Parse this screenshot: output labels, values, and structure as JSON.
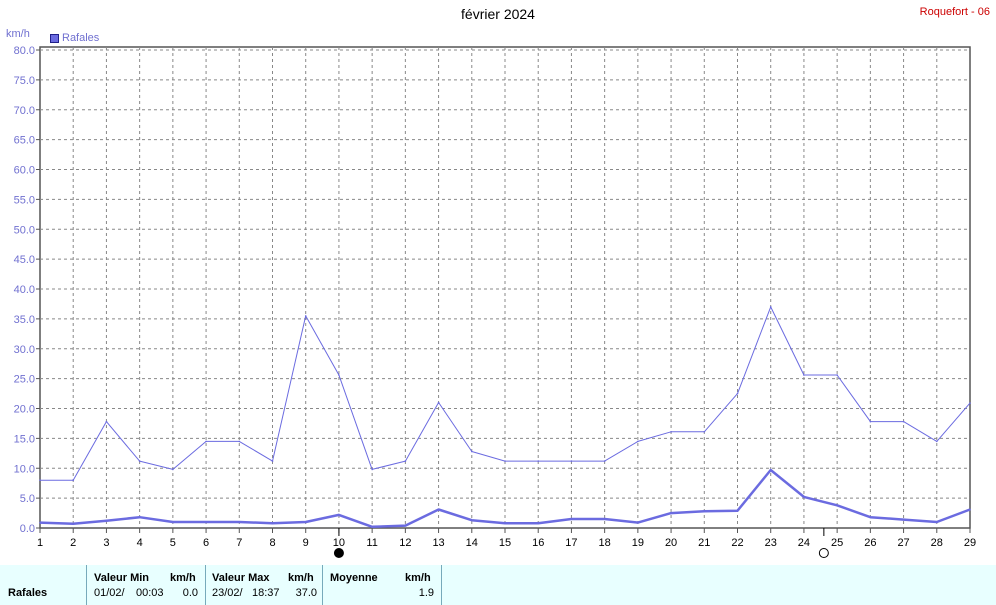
{
  "header": {
    "title": "février 2024",
    "station": "Roquefort - 06",
    "unit": "km/h",
    "legend_label": "Rafales"
  },
  "colors": {
    "series": "#6b6be0",
    "grid": "#888888",
    "axis_text": "#7070d0",
    "station": "#cc0000",
    "stats_bg": "#e8ffff"
  },
  "chart_data": {
    "type": "line",
    "title": "février 2024",
    "ylabel": "km/h",
    "ylim": [
      0,
      80
    ],
    "y_ticks": [
      "0.0",
      "5.0",
      "10.0",
      "15.0",
      "20.0",
      "25.0",
      "30.0",
      "35.0",
      "40.0",
      "45.0",
      "50.0",
      "55.0",
      "60.0",
      "65.0",
      "70.0",
      "75.0",
      "80.0"
    ],
    "x": [
      "1",
      "2",
      "3",
      "4",
      "5",
      "6",
      "7",
      "8",
      "9",
      "10",
      "11",
      "12",
      "13",
      "14",
      "15",
      "16",
      "17",
      "18",
      "19",
      "20",
      "21",
      "22",
      "23",
      "24",
      "25",
      "26",
      "27",
      "28",
      "29"
    ],
    "grid": true,
    "legend_position": "top-left",
    "series": [
      {
        "name": "Rafales",
        "style": "thin",
        "values": [
          8,
          8,
          17.8,
          11.2,
          9.8,
          14.5,
          14.5,
          11.2,
          35.5,
          25.6,
          9.8,
          11.2,
          21,
          12.8,
          11.2,
          11.2,
          11.2,
          11.2,
          14.5,
          16.1,
          16.1,
          22.5,
          37,
          25.6,
          25.6,
          17.8,
          17.8,
          14.5,
          20.9
        ]
      },
      {
        "name": "Rafales",
        "style": "thick",
        "values": [
          0.9,
          0.7,
          1.2,
          1.8,
          1,
          1,
          1,
          0.8,
          1,
          2.2,
          0.2,
          0.4,
          3.1,
          1.3,
          0.8,
          0.8,
          1.5,
          1.5,
          0.9,
          2.5,
          2.8,
          2.9,
          9.7,
          5.2,
          3.8,
          1.8,
          1.4,
          1,
          3.1
        ]
      }
    ],
    "moon_phases": [
      {
        "day": 10,
        "phase": "new"
      },
      {
        "day": 24.6,
        "phase": "full"
      }
    ]
  },
  "stats": {
    "row_label": "Rafales",
    "min_header": "Valeur Min",
    "min_unit": "km/h",
    "min_date": "01/02/",
    "min_time": "00:03",
    "min_value": "0.0",
    "max_header": "Valeur Max",
    "max_unit": "km/h",
    "max_date": "23/02/",
    "max_time": "18:37",
    "max_value": "37.0",
    "avg_header": "Moyenne",
    "avg_unit": "km/h",
    "avg_value": "1.9"
  }
}
